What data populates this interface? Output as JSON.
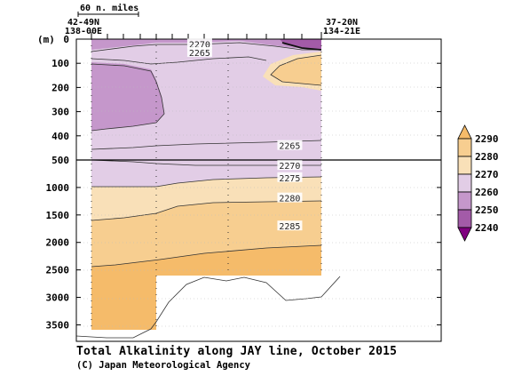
{
  "chart_data": {
    "type": "contour",
    "title": "Total Alkalinity along JAY line, October 2015",
    "credit": "(C) Japan Meteorological Agency",
    "y_unit": "(m)",
    "scale_label": "60 n. miles",
    "x_endpoints": {
      "left": {
        "lat": "42-49N",
        "lon": "138-00E"
      },
      "right": {
        "lat": "37-20N",
        "lon": "134-21E"
      }
    },
    "y_ticks_upper": [
      0,
      100,
      200,
      300,
      400,
      500
    ],
    "y_ticks_lower": [
      1000,
      1500,
      2000,
      2500,
      3000,
      3500
    ],
    "ylim_upper": [
      0,
      500
    ],
    "ylim_lower": [
      500,
      3800
    ],
    "contour_labels": [
      {
        "value": "2270",
        "x": 0.338,
        "depth": 20
      },
      {
        "value": "2265",
        "x": 0.338,
        "depth": 55
      },
      {
        "value": "2265",
        "x": 0.585,
        "depth": 440
      },
      {
        "value": "2270",
        "x": 0.585,
        "depth": 600
      },
      {
        "value": "2275",
        "x": 0.585,
        "depth": 820
      },
      {
        "value": "2280",
        "x": 0.585,
        "depth": 1190
      },
      {
        "value": "2285",
        "x": 0.585,
        "depth": 1700
      }
    ],
    "colorbar": {
      "levels": [
        "2290",
        "2280",
        "2270",
        "2260",
        "2250",
        "2240"
      ],
      "colors": [
        "#f5bb6a",
        "#f7ce90",
        "#f9e0b8",
        "#e2cde6",
        "#c597cb",
        "#a35ba8",
        "#800080"
      ]
    }
  }
}
